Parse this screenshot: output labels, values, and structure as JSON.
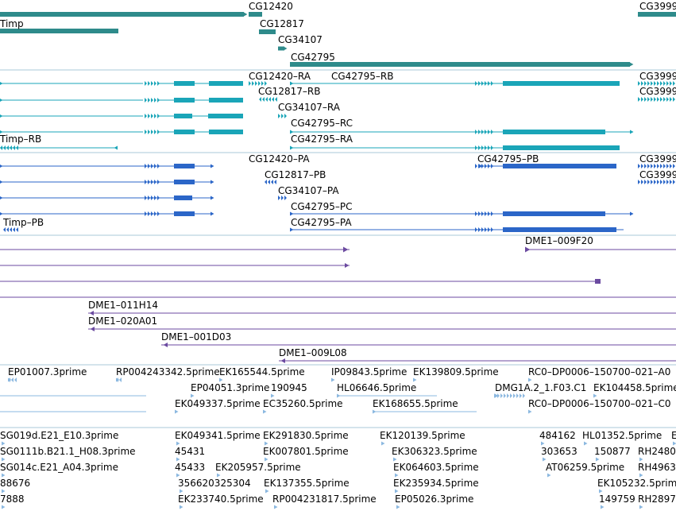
{
  "colors": {
    "gene": "#2e8b8b",
    "transcript_rna": "#1aa5b8",
    "transcript_protein": "#2b66c8",
    "clone": "#6b4aa0",
    "est": "#8bb8e0",
    "divider": "#a8c8d8"
  },
  "genes": [
    {
      "name": "CG12420",
      "label": "CG12420"
    },
    {
      "name": "Timp",
      "label": "Timp"
    },
    {
      "name": "CG12817",
      "label": "CG12817"
    },
    {
      "name": "CG34107",
      "label": "CG34107"
    },
    {
      "name": "CG42795",
      "label": "CG42795"
    },
    {
      "name": "CG3999",
      "label": "CG3999"
    }
  ],
  "rna_transcripts": [
    {
      "label": "CG12420–RA"
    },
    {
      "label": "CG42795–RB"
    },
    {
      "label": "CG12817–RB"
    },
    {
      "label": "CG34107–RA"
    },
    {
      "label": "CG42795–RC"
    },
    {
      "label": "Timp–RB"
    },
    {
      "label": "CG42795–RA"
    },
    {
      "label": "CG3999"
    },
    {
      "label": "CG3999"
    }
  ],
  "protein_transcripts": [
    {
      "label": "CG12420–PA"
    },
    {
      "label": "CG42795–PB"
    },
    {
      "label": "CG12817–PB"
    },
    {
      "label": "CG34107–PA"
    },
    {
      "label": "CG42795–PC"
    },
    {
      "label": "Timp–PB"
    },
    {
      "label": "CG42795–PA"
    },
    {
      "label": "CG3999"
    },
    {
      "label": "CG3999"
    }
  ],
  "clones": [
    {
      "label": "DME1–009F20"
    },
    {
      "label": "DME1–011H14"
    },
    {
      "label": "DME1–020A01"
    },
    {
      "label": "DME1–001D03"
    },
    {
      "label": "DME1–009L08"
    }
  ],
  "ests_top": [
    {
      "label": "EP01007.3prime"
    },
    {
      "label": "RP004243342.5prime"
    },
    {
      "label": "EK165544.5prime"
    },
    {
      "label": "IP09843.5prime"
    },
    {
      "label": "EK139809.5prime"
    },
    {
      "label": "RC0–DP0006–150700–021–A0"
    },
    {
      "label": "EP04051.3prime"
    },
    {
      "label": "190945"
    },
    {
      "label": "HL06646.5prime"
    },
    {
      "label": "DMG1A.2_1.F03.C1"
    },
    {
      "label": "EK104458.5prime"
    },
    {
      "label": "EK049337.5prime"
    },
    {
      "label": "EC35260.5prime"
    },
    {
      "label": "EK168655.5prime"
    },
    {
      "label": "RC0–DP0006–150700–021–C0"
    }
  ],
  "ests_bottom": [
    {
      "label": "SG019d.E21_E10.3prime"
    },
    {
      "label": "EK049341.5prime"
    },
    {
      "label": "EK291830.5prime"
    },
    {
      "label": "EK120139.5prime"
    },
    {
      "label": "484162"
    },
    {
      "label": "HL01352.5prime"
    },
    {
      "label": "E"
    },
    {
      "label": "SG0111b.B21.1_H08.3prime"
    },
    {
      "label": "45431"
    },
    {
      "label": "EK007801.5prime"
    },
    {
      "label": "EK306323.5prime"
    },
    {
      "label": "303653"
    },
    {
      "label": "150877"
    },
    {
      "label": "RH2480"
    },
    {
      "label": "SG014c.E21_A04.3prime"
    },
    {
      "label": "45433"
    },
    {
      "label": "EK205957.5prime"
    },
    {
      "label": "EK064603.5prime"
    },
    {
      "label": "AT06259.5prime"
    },
    {
      "label": "RH4963"
    },
    {
      "label": "88676"
    },
    {
      "label": "356620325304"
    },
    {
      "label": "EK137355.5prime"
    },
    {
      "label": "EK235934.5prime"
    },
    {
      "label": "EK105232.5prime"
    },
    {
      "label": "7888"
    },
    {
      "label": "EK233740.5prime"
    },
    {
      "label": "RP004231817.5prime"
    },
    {
      "label": "EP05026.3prime"
    },
    {
      "label": "149759"
    },
    {
      "label": "RH2897"
    }
  ]
}
